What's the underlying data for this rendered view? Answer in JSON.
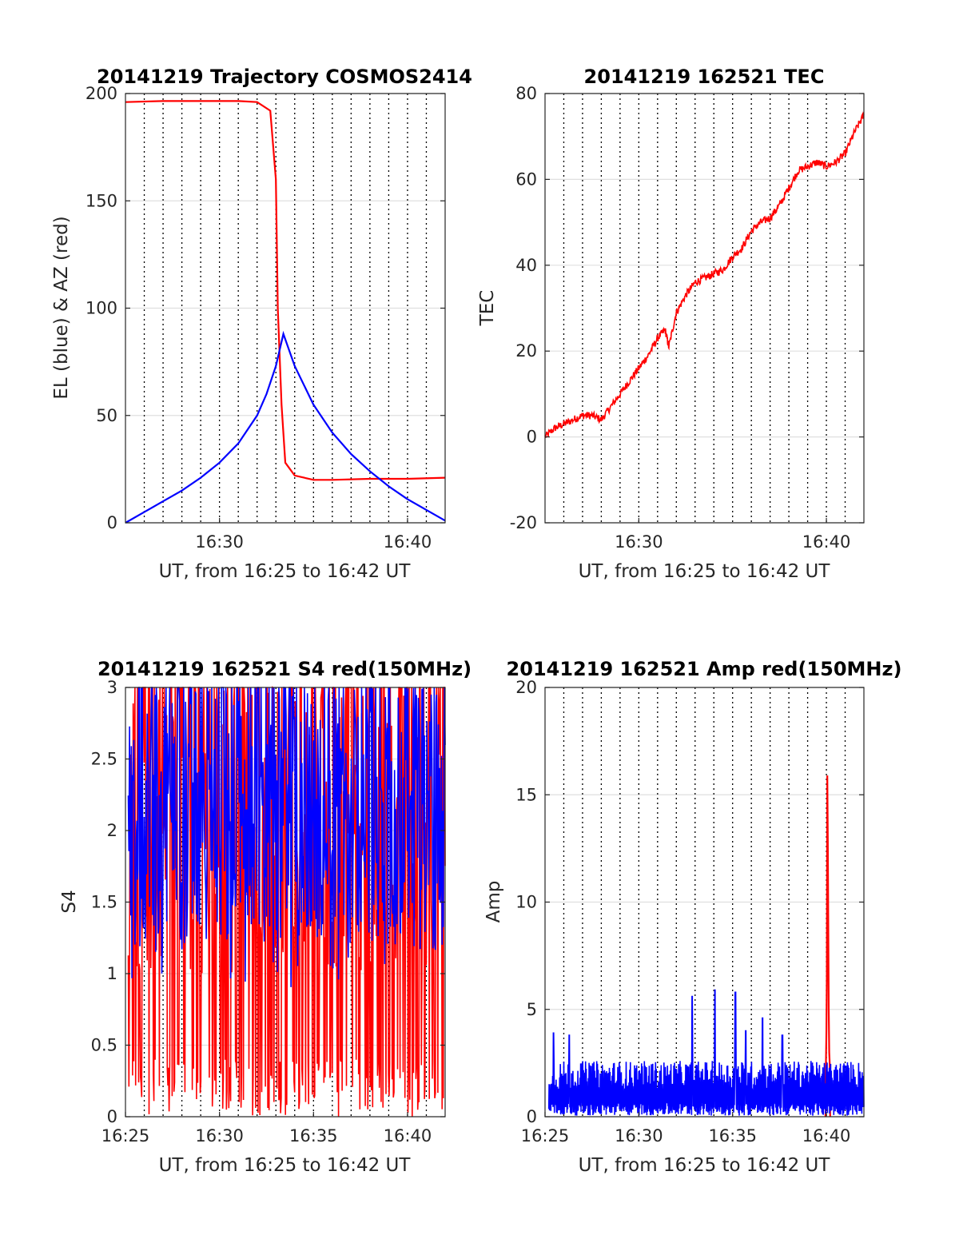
{
  "figure": {
    "colors": {
      "azimuth": "#ff0000",
      "elevation": "#0000ff",
      "tec": "#ff0000",
      "s4_red": "#ff0000",
      "s4_blue": "#0000ff",
      "amp_red": "#ff0000",
      "amp_blue": "#0000ff"
    }
  },
  "chart_data": [
    {
      "type": "line",
      "title": "20141219 Trajectory COSMOS2414",
      "xlabel": "UT, from 16:25 to 16:42 UT",
      "ylabel": "EL (blue) & AZ (red)",
      "xlim": [
        "16:25",
        "16:42"
      ],
      "ylim": [
        0,
        200
      ],
      "yticks": [
        0,
        50,
        100,
        150,
        200
      ],
      "xtick_labels": [
        "16:30",
        "16:40"
      ],
      "x_minutes": [
        0,
        1,
        2,
        3,
        4,
        5,
        6,
        7,
        7.8,
        8.2,
        8.5,
        8.8,
        9,
        10,
        11,
        12,
        13,
        14,
        15,
        16,
        17
      ],
      "series": [
        {
          "name": "",
          "color": "red",
          "x": [
            "16:25",
            "16:27",
            "16:29",
            "16:31",
            "16:32",
            "16:32.7",
            "16:33",
            "16:33.1",
            "16:33.3",
            "16:33.5",
            "16:34",
            "16:35",
            "16:36",
            "16:38",
            "16:40",
            "16:42"
          ],
          "y": [
            196,
            196.5,
            196.5,
            196.5,
            196,
            192,
            160,
            100,
            55,
            28,
            22,
            20,
            20,
            20.5,
            20.5,
            21
          ]
        },
        {
          "name": "",
          "color": "blue",
          "x": [
            "16:25",
            "16:26",
            "16:27",
            "16:28",
            "16:29",
            "16:30",
            "16:31",
            "16:32",
            "16:32.5",
            "16:33",
            "16:33.4",
            "16:34",
            "16:35",
            "16:36",
            "16:37",
            "16:38",
            "16:39",
            "16:40",
            "16:41",
            "16:42"
          ],
          "y": [
            0,
            5,
            10,
            15,
            21,
            28,
            37,
            50,
            60,
            73,
            88,
            73,
            55,
            42,
            32,
            24,
            17,
            11,
            6,
            1
          ]
        }
      ]
    },
    {
      "type": "line",
      "title": "20141219 162521 TEC",
      "xlabel": "UT, from 16:25 to 16:42 UT",
      "ylabel": "TEC",
      "xlim": [
        "16:25",
        "16:42"
      ],
      "ylim": [
        -20,
        80
      ],
      "yticks": [
        -20,
        0,
        20,
        40,
        60,
        80
      ],
      "xtick_labels": [
        "16:30",
        "16:40"
      ],
      "series": [
        {
          "name": "",
          "color": "red",
          "x": [
            "16:25",
            "16:25.5",
            "16:26",
            "16:26.5",
            "16:27",
            "16:27.5",
            "16:28",
            "16:28.5",
            "16:29",
            "16:29.5",
            "16:30",
            "16:30.5",
            "16:31",
            "16:31.4",
            "16:31.6",
            "16:32",
            "16:32.5",
            "16:33",
            "16:33.5",
            "16:34",
            "16:34.5",
            "16:35",
            "16:35.5",
            "16:36",
            "16:36.5",
            "16:37",
            "16:37.5",
            "16:38",
            "16:38.5",
            "16:39",
            "16:39.5",
            "16:40",
            "16:40.5",
            "16:41",
            "16:41.5",
            "16:42"
          ],
          "y": [
            0,
            2,
            3,
            4,
            5,
            5,
            4,
            7,
            10,
            13,
            16,
            19,
            23,
            25,
            21,
            29,
            33,
            36,
            37,
            38,
            39,
            42,
            44,
            48,
            50,
            51,
            54,
            58,
            62,
            63,
            64,
            63,
            64,
            66,
            71,
            75
          ]
        }
      ]
    },
    {
      "type": "line",
      "title": "20141219 162521 S4 red(150MHz)",
      "xlabel": "UT, from 16:25 to 16:42 UT",
      "ylabel": "S4",
      "xlim": [
        "16:25",
        "16:42"
      ],
      "ylim": [
        0,
        3
      ],
      "yticks": [
        0,
        0.5,
        1,
        1.5,
        2,
        2.5,
        3
      ],
      "xtick_labels": [
        "16:25",
        "16:30",
        "16:35",
        "16:40"
      ],
      "series": [
        {
          "name": "",
          "color": "red",
          "x": [
            "16:25",
            "16:42"
          ],
          "y_range": [
            0,
            3
          ]
        },
        {
          "name": "",
          "color": "blue",
          "x": [
            "16:25",
            "16:42"
          ],
          "y_range": [
            0.9,
            3
          ]
        }
      ]
    },
    {
      "type": "line",
      "title": "20141219 162521 Amp red(150MHz)",
      "xlabel": "UT, from 16:25 to 16:42 UT",
      "ylabel": "Amp",
      "xlim": [
        "16:25",
        "16:42"
      ],
      "ylim": [
        0,
        20
      ],
      "yticks": [
        0,
        5,
        10,
        15,
        20
      ],
      "xtick_labels": [
        "16:25",
        "16:30",
        "16:35",
        "16:40"
      ],
      "series": [
        {
          "name": "",
          "color": "red",
          "x": [
            "16:40",
            "16:40.1"
          ],
          "y_peak": 16
        },
        {
          "name": "",
          "color": "blue",
          "x": [
            "16:25",
            "16:42"
          ],
          "y_range": [
            0,
            5.9
          ]
        }
      ]
    }
  ],
  "panels": [
    {
      "title": "20141219 Trajectory COSMOS2414",
      "ylabel": "EL (blue) & AZ (red)",
      "xlabel": "UT, from 16:25 to 16:42 UT",
      "yticks": [
        "0",
        "50",
        "100",
        "150",
        "200"
      ],
      "xticks": [
        "16:30",
        "16:40"
      ]
    },
    {
      "title": "20141219 162521 TEC",
      "ylabel": "TEC",
      "xlabel": "UT, from 16:25 to 16:42 UT",
      "yticks": [
        "-20",
        "0",
        "20",
        "40",
        "60",
        "80"
      ],
      "xticks": [
        "16:30",
        "16:40"
      ]
    },
    {
      "title": "20141219 162521 S4 red(150MHz)",
      "ylabel": "S4",
      "xlabel": "UT, from 16:25 to 16:42 UT",
      "yticks": [
        "0",
        "0.5",
        "1",
        "1.5",
        "2",
        "2.5",
        "3"
      ],
      "xticks": [
        "16:25",
        "16:30",
        "16:35",
        "16:40"
      ]
    },
    {
      "title": "20141219 162521 Amp red(150MHz)",
      "ylabel": "Amp",
      "xlabel": "UT, from 16:25 to 16:42 UT",
      "yticks": [
        "0",
        "5",
        "10",
        "15",
        "20"
      ],
      "xticks": [
        "16:25",
        "16:30",
        "16:35",
        "16:40"
      ]
    }
  ]
}
